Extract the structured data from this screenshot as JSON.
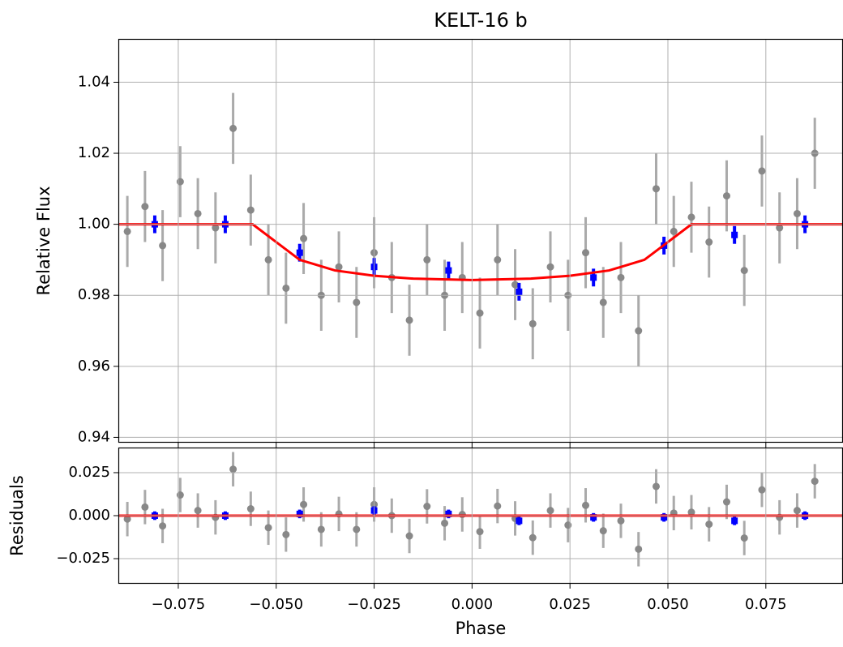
{
  "chart_data": [
    {
      "type": "scatter",
      "title": "KELT-16 b",
      "ylabel": "Relative Flux",
      "xlim": [
        -0.0903,
        0.0947
      ],
      "ylim": [
        0.9385,
        1.0522
      ],
      "xticks": [
        -0.075,
        -0.05,
        -0.025,
        0,
        0.025,
        0.05,
        0.075
      ],
      "yticks": [
        0.94,
        0.96,
        0.98,
        {
          "value": 1.0,
          "label": "1.00"
        },
        1.02,
        1.04
      ],
      "grid": true,
      "series": [
        {
          "kind": "points",
          "color": "#888888",
          "yerr": 0.01,
          "x": [
            -0.088,
            -0.0835,
            -0.079,
            -0.0745,
            -0.07,
            -0.0655,
            -0.061,
            -0.0565,
            -0.052,
            -0.0475,
            -0.043,
            -0.0385,
            -0.034,
            -0.0295,
            -0.025,
            -0.0205,
            -0.016,
            -0.0115,
            -0.007,
            -0.0025,
            0.002,
            0.0065,
            0.011,
            0.0155,
            0.02,
            0.0245,
            0.029,
            0.0335,
            0.038,
            0.0425,
            0.047,
            0.0515,
            0.056,
            0.0605,
            0.065,
            0.0695,
            0.074,
            0.0785,
            0.083,
            0.0875
          ],
          "values": [
            0.998,
            1.005,
            0.994,
            1.012,
            1.003,
            0.999,
            1.027,
            1.004,
            0.99,
            0.982,
            0.996,
            0.98,
            0.988,
            0.978,
            0.992,
            0.985,
            0.973,
            0.99,
            0.98,
            0.985,
            0.975,
            0.99,
            0.983,
            0.972,
            0.988,
            0.98,
            0.992,
            0.978,
            0.985,
            0.97,
            1.01,
            0.998,
            1.002,
            0.995,
            1.008,
            0.987,
            1.015,
            0.999,
            1.003,
            1.02
          ]
        },
        {
          "kind": "points",
          "color": "#0000ff",
          "yerr": 0.0025,
          "x": [
            -0.081,
            -0.063,
            -0.044,
            -0.025,
            -0.006,
            0.012,
            0.031,
            0.049,
            0.067,
            0.085
          ],
          "values": [
            1.0,
            1.0,
            0.992,
            0.988,
            0.987,
            0.981,
            0.985,
            0.994,
            0.997,
            1.0
          ]
        },
        {
          "kind": "line",
          "color": "#ff0000",
          "x": [
            -0.0903,
            -0.056,
            -0.05,
            -0.044,
            -0.035,
            -0.025,
            -0.015,
            0,
            0.015,
            0.025,
            0.035,
            0.044,
            0.05,
            0.056,
            0.0947
          ],
          "values": [
            1,
            1,
            0.995,
            0.99,
            0.987,
            0.9855,
            0.9847,
            0.9843,
            0.9847,
            0.9855,
            0.987,
            0.99,
            0.995,
            1,
            1
          ]
        }
      ]
    },
    {
      "type": "scatter",
      "ylabel": "Residuals",
      "xlabel": "Phase",
      "xlim": [
        -0.0903,
        0.0947
      ],
      "ylim": [
        -0.0396,
        0.0396
      ],
      "xticks": [
        {
          "value": -0.075,
          "label": "−0.075"
        },
        {
          "value": -0.05,
          "label": "−0.050"
        },
        {
          "value": -0.025,
          "label": "−0.025"
        },
        {
          "value": 0,
          "label": "0.000"
        },
        {
          "value": 0.025,
          "label": "0.025"
        },
        {
          "value": 0.05,
          "label": "0.050"
        },
        {
          "value": 0.075,
          "label": "0.075"
        }
      ],
      "yticks": [
        {
          "value": -0.025,
          "label": "−0.025"
        },
        {
          "value": 0,
          "label": "0.000"
        },
        {
          "value": 0.025,
          "label": "0.025"
        }
      ],
      "grid": true,
      "series": [
        {
          "kind": "points",
          "color": "#888888",
          "yerr": 0.01,
          "x": [
            -0.088,
            -0.0835,
            -0.079,
            -0.0745,
            -0.07,
            -0.0655,
            -0.061,
            -0.0565,
            -0.052,
            -0.0475,
            -0.043,
            -0.0385,
            -0.034,
            -0.0295,
            -0.025,
            -0.0205,
            -0.016,
            -0.0115,
            -0.007,
            -0.0025,
            0.002,
            0.0065,
            0.011,
            0.0155,
            0.02,
            0.0245,
            0.029,
            0.0335,
            0.038,
            0.0425,
            0.047,
            0.0515,
            0.056,
            0.0605,
            0.065,
            0.0695,
            0.074,
            0.0785,
            0.083,
            0.0875
          ],
          "values": [
            -0.002,
            0.005,
            -0.006,
            0.012,
            0.003,
            -0.001,
            0.027,
            0.004,
            -0.007,
            -0.011,
            0.0065,
            -0.008,
            0.001,
            -0.008,
            0.0065,
            0,
            -0.0118,
            0.0054,
            -0.0044,
            0.0007,
            -0.0093,
            0.0056,
            -0.0016,
            -0.0128,
            0.003,
            -0.0055,
            0.006,
            -0.0088,
            -0.003,
            -0.0195,
            0.017,
            0.0015,
            0.002,
            -0.005,
            0.008,
            -0.013,
            0.015,
            -0.001,
            0.003,
            0.02
          ]
        },
        {
          "kind": "points",
          "color": "#0000ff",
          "yerr": 0.0025,
          "x": [
            -0.081,
            -0.063,
            -0.044,
            -0.025,
            -0.006,
            0.012,
            0.031,
            0.049,
            0.067,
            0.085
          ],
          "values": [
            0,
            0,
            0.001,
            0.003,
            0.001,
            -0.003,
            -0.001,
            -0.001,
            -0.003,
            0
          ]
        },
        {
          "kind": "line",
          "color": "#ff0000",
          "x": [
            -0.0903,
            0.0947
          ],
          "values": [
            0,
            0
          ]
        }
      ]
    }
  ]
}
